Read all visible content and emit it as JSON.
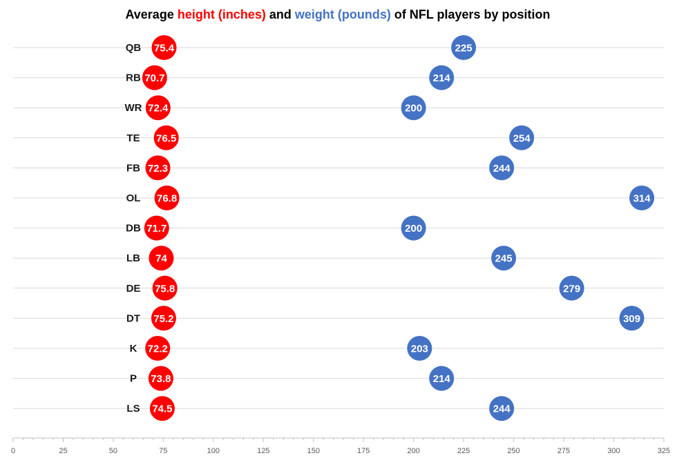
{
  "chart_data": {
    "type": "scatter",
    "title": {
      "parts": [
        {
          "text": "Average ",
          "color": "#000000"
        },
        {
          "text": "height (inches)",
          "color": "#ff0000"
        },
        {
          "text": " and ",
          "color": "#000000"
        },
        {
          "text": "weight (pounds)",
          "color": "#4472c4"
        },
        {
          "text": " of NFL players by position",
          "color": "#000000"
        }
      ]
    },
    "categories": [
      "QB",
      "RB",
      "WR",
      "TE",
      "FB",
      "OL",
      "DB",
      "LB",
      "DE",
      "DT",
      "K",
      "P",
      "LS"
    ],
    "series": [
      {
        "name": "height (inches)",
        "color": "#ff0000",
        "values": [
          75.4,
          70.7,
          72.4,
          76.5,
          72.3,
          76.8,
          71.7,
          74,
          75.8,
          75.2,
          72.2,
          73.8,
          74.5
        ]
      },
      {
        "name": "weight (pounds)",
        "color": "#4472c4",
        "values": [
          225,
          214,
          200,
          254,
          244,
          314,
          200,
          245,
          279,
          309,
          203,
          214,
          244
        ]
      }
    ],
    "xlim": [
      0,
      325
    ],
    "xticks": [
      0,
      25,
      50,
      75,
      100,
      125,
      150,
      175,
      200,
      225,
      250,
      275,
      300,
      325
    ],
    "xlabel": "",
    "ylabel": "",
    "grid": true,
    "legend": "none"
  }
}
